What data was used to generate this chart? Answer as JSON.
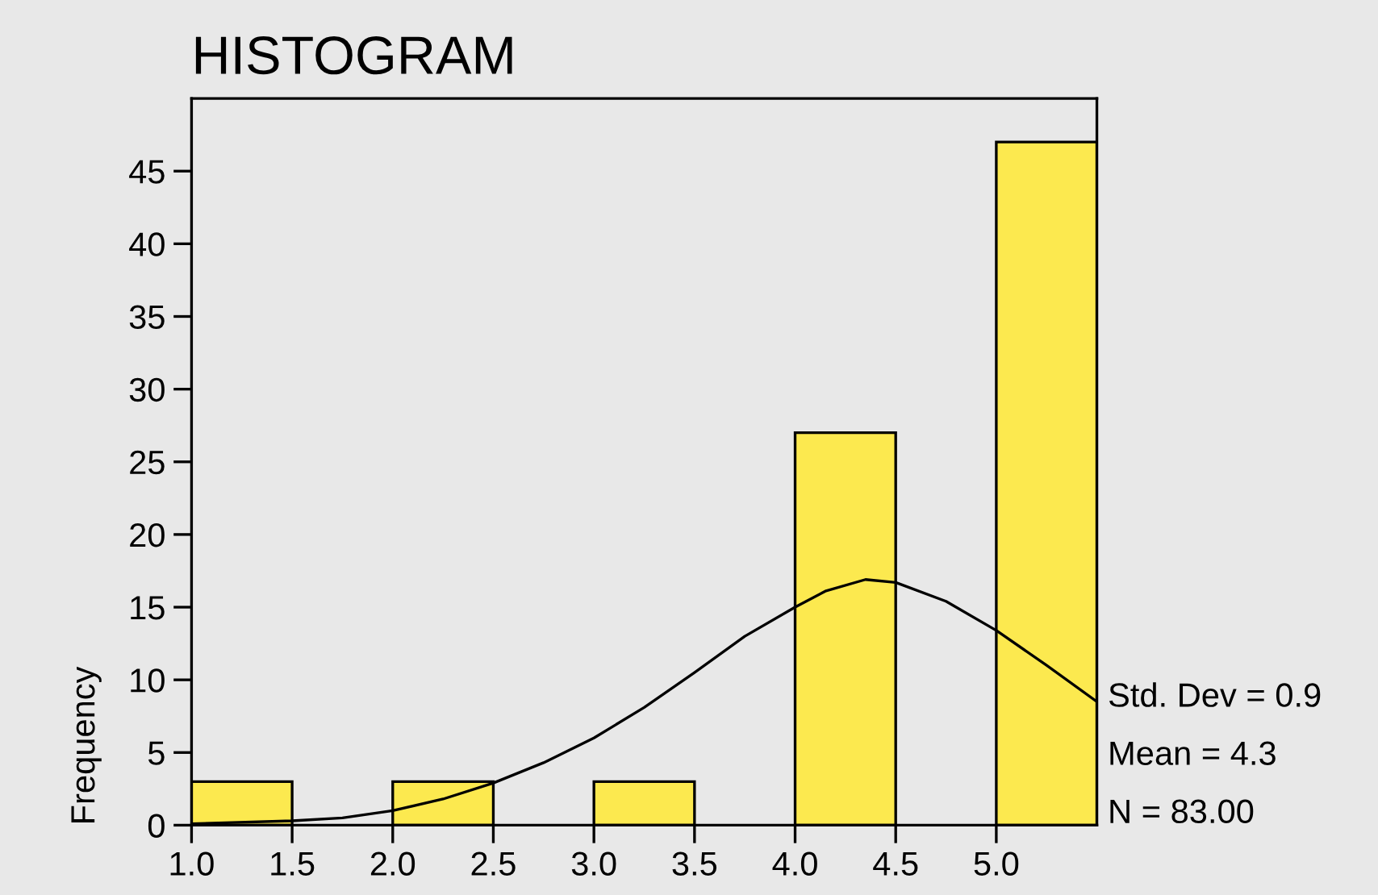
{
  "chart_data": {
    "type": "histogram",
    "title": "HISTOGRAM",
    "ylabel": "Frequency",
    "bins": [
      1.0,
      1.5,
      2.0,
      2.5,
      3.0,
      3.5,
      4.0,
      4.5,
      5.0,
      5.5
    ],
    "values": [
      3,
      0,
      3,
      0,
      3,
      0,
      27,
      0,
      47
    ],
    "color": "#fce94f",
    "series": [
      {
        "type": "line",
        "color": "#000000",
        "x": [
          1.0,
          1.5,
          1.75,
          2.0,
          2.25,
          2.5,
          2.75,
          3.0,
          3.25,
          3.5,
          3.75,
          4.0,
          4.15,
          4.35,
          4.5,
          4.75,
          5.0,
          5.25,
          5.5
        ],
        "values": [
          0.1,
          0.3,
          0.5,
          1.0,
          1.8,
          2.9,
          4.3,
          6.0,
          8.1,
          10.5,
          13.0,
          15.0,
          16.1,
          16.9,
          16.7,
          15.4,
          13.4,
          11.0,
          8.5
        ]
      }
    ],
    "xlim": [
      1.0,
      5.5
    ],
    "xticks": [
      {
        "value": 1,
        "label": "1.0"
      },
      1.5,
      {
        "value": 2,
        "label": "2.0"
      },
      2.5,
      {
        "value": 3,
        "label": "3.0"
      },
      3.5,
      {
        "value": 4,
        "label": "4.0"
      },
      4.5,
      {
        "value": 5,
        "label": "5.0"
      }
    ],
    "ylim": [
      0,
      50
    ],
    "yticks": [
      0,
      5,
      10,
      15,
      20,
      25,
      30,
      35,
      40,
      45
    ],
    "grid": false,
    "annotations": [
      "Std. Dev = 0.9",
      "Mean = 4.3",
      "N = 83.00"
    ]
  }
}
